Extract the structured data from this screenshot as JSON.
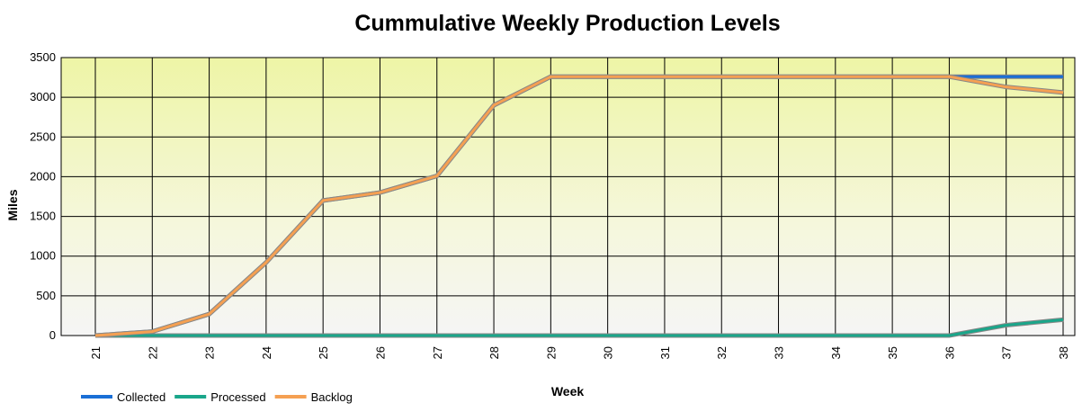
{
  "chart_data": {
    "type": "line",
    "title": "Cummulative Weekly Production Levels",
    "x_label": "Week",
    "y_label": "Miles",
    "categories": [
      "21",
      "22",
      "23",
      "24",
      "25",
      "26",
      "27",
      "28",
      "29",
      "30",
      "31",
      "32",
      "33",
      "34",
      "35",
      "36",
      "37",
      "38"
    ],
    "series": [
      {
        "name": "Collected",
        "color": "#1a6fd6",
        "values": [
          0,
          50,
          270,
          920,
          1700,
          1800,
          2010,
          2900,
          3260,
          3260,
          3260,
          3260,
          3260,
          3260,
          3260,
          3260,
          3260,
          3260
        ]
      },
      {
        "name": "Processed",
        "color": "#1aa68a",
        "values": [
          0,
          0,
          0,
          0,
          0,
          0,
          0,
          0,
          0,
          0,
          0,
          0,
          0,
          0,
          0,
          0,
          130,
          200
        ]
      },
      {
        "name": "Backlog",
        "color": "#f5a052",
        "values": [
          0,
          50,
          270,
          920,
          1700,
          1800,
          2010,
          2900,
          3260,
          3260,
          3260,
          3260,
          3260,
          3260,
          3260,
          3260,
          3130,
          3060
        ]
      }
    ],
    "ylim": [
      0,
      3500
    ],
    "yticks": [
      0,
      500,
      1000,
      1500,
      2000,
      2500,
      3000,
      3500
    ],
    "grid": true,
    "legend": "bottom-left"
  }
}
